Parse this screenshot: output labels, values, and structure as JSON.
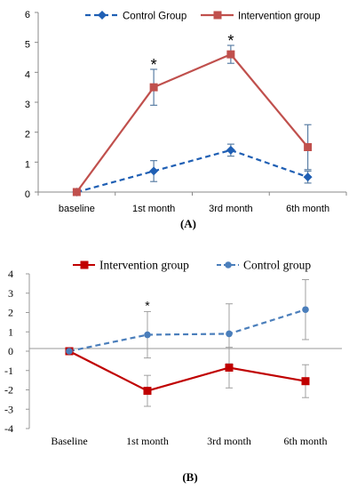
{
  "chart_data": [
    {
      "panel": "(A)",
      "type": "line",
      "categories": [
        "baseline",
        "1st month",
        "3rd month",
        "6th month"
      ],
      "ylim": [
        0,
        6
      ],
      "yticks": [
        "0",
        "1",
        "2",
        "3",
        "4",
        "5",
        "6"
      ],
      "grid": false,
      "legend_position": "top",
      "series": [
        {
          "name": "Control Group",
          "values": [
            0,
            0.7,
            1.4,
            0.5
          ],
          "errors": [
            0,
            0.35,
            0.2,
            0.2
          ],
          "color": "#1F5FB4",
          "line_style": "dashed",
          "marker": "diamond"
        },
        {
          "name": "Intervention group",
          "values": [
            0,
            3.5,
            4.6,
            1.5
          ],
          "errors": [
            0,
            0.6,
            0.3,
            0.75
          ],
          "color": "#C0504D",
          "line_style": "solid",
          "marker": "square"
        }
      ],
      "annotations": [
        {
          "text": "*",
          "category": "1st month"
        },
        {
          "text": "*",
          "category": "3rd month"
        }
      ]
    },
    {
      "panel": "(B)",
      "type": "line",
      "categories": [
        "Baseline",
        "1st month",
        "3rd month",
        "6th month"
      ],
      "ylim": [
        -4,
        4
      ],
      "yticks": [
        "4",
        "3",
        "2",
        "1",
        "0",
        "-1",
        "-2",
        "-3",
        "-4"
      ],
      "grid": false,
      "legend_position": "top",
      "series": [
        {
          "name": "Intervention group",
          "values": [
            0,
            -2.05,
            -0.85,
            -1.55
          ],
          "errors": [
            0,
            0.8,
            1.05,
            0.85
          ],
          "color": "#C00000",
          "line_style": "solid",
          "marker": "square"
        },
        {
          "name": "Control group",
          "values": [
            0,
            0.85,
            0.9,
            2.15
          ],
          "errors": [
            0,
            1.2,
            1.55,
            1.55
          ],
          "color": "#4A7EBB",
          "line_style": "dashed",
          "marker": "circle"
        }
      ],
      "annotations": [
        {
          "text": "*",
          "category": "1st month"
        }
      ]
    }
  ]
}
